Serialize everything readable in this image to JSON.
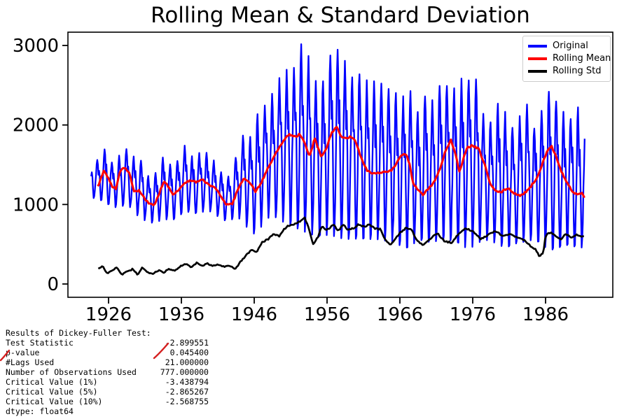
{
  "title": "Rolling Mean & Standard Deviation",
  "legend": [
    {
      "name": "original",
      "label": "Original",
      "color": "#0000ff"
    },
    {
      "name": "rolling-mean",
      "label": "Rolling Mean",
      "color": "#ff0000"
    },
    {
      "name": "rolling-std",
      "label": "Rolling Std",
      "color": "#000000"
    }
  ],
  "chart_data": {
    "type": "line",
    "title": "Rolling Mean & Standard Deviation",
    "xlabel": "",
    "ylabel": "",
    "x_unit": "year (monthly time series)",
    "x_ticks": [
      1926,
      1936,
      1946,
      1956,
      1966,
      1976,
      1986
    ],
    "y_ticks": [
      0,
      1000,
      2000,
      3000
    ],
    "x_range": [
      1923.62,
      1991.38
    ],
    "grid": false,
    "legend_position": "upper right",
    "series": [
      {
        "name": "Original",
        "color": "#0000ff",
        "kind": "seasonal_envelope_monthly",
        "envelope_start_year": 1924,
        "peaks": [
          1560,
          1700,
          1520,
          1620,
          1700,
          1600,
          1550,
          1350,
          1400,
          1600,
          1500,
          1550,
          1750,
          1600,
          1650,
          1650,
          1550,
          1400,
          1350,
          1600,
          1880,
          1850,
          2150,
          2250,
          2400,
          2600,
          2700,
          2720,
          3030,
          2860,
          2540,
          2550,
          2890,
          2950,
          2800,
          2590,
          2640,
          2560,
          2550,
          2520,
          2450,
          2400,
          2360,
          2430,
          2150,
          2370,
          2310,
          2500,
          2490,
          2460,
          2590,
          2560,
          2575,
          2120,
          2030,
          2280,
          2160,
          1955,
          2120,
          2265,
          1940,
          2190,
          2430,
          2290,
          2160,
          2070,
          2230,
          2030
        ],
        "troughs": [
          1080,
          1020,
          980,
          950,
          1020,
          900,
          820,
          780,
          760,
          830,
          790,
          840,
          920,
          890,
          890,
          930,
          890,
          810,
          790,
          840,
          800,
          620,
          650,
          800,
          870,
          800,
          760,
          720,
          670,
          640,
          600,
          610,
          620,
          580,
          570,
          560,
          580,
          560,
          570,
          550,
          540,
          520,
          450,
          470,
          560,
          540,
          520,
          560,
          540,
          560,
          480,
          440,
          500,
          560,
          540,
          500,
          450,
          500,
          520,
          540,
          560,
          500,
          420,
          450,
          480,
          500,
          440,
          480
        ],
        "seasonal_pattern": [
          0.05,
          0.2,
          0.42,
          0.65,
          0.88,
          1.0,
          0.85,
          0.62,
          0.72,
          0.5,
          0.22,
          0.0
        ]
      },
      {
        "name": "Rolling Mean",
        "color": "#ff0000",
        "kind": "control_points",
        "points": [
          [
            1924.6,
            1230
          ],
          [
            1925.3,
            1420
          ],
          [
            1925.9,
            1350
          ],
          [
            1926.5,
            1230
          ],
          [
            1927.0,
            1200
          ],
          [
            1927.6,
            1420
          ],
          [
            1928.3,
            1470
          ],
          [
            1928.9,
            1380
          ],
          [
            1929.5,
            1160
          ],
          [
            1930.2,
            1180
          ],
          [
            1930.8,
            1100
          ],
          [
            1931.5,
            1010
          ],
          [
            1932.3,
            990
          ],
          [
            1933.0,
            1150
          ],
          [
            1933.6,
            1300
          ],
          [
            1934.2,
            1230
          ],
          [
            1934.8,
            1130
          ],
          [
            1935.6,
            1180
          ],
          [
            1936.4,
            1270
          ],
          [
            1937.2,
            1300
          ],
          [
            1938.0,
            1280
          ],
          [
            1939.0,
            1310
          ],
          [
            1939.8,
            1240
          ],
          [
            1940.6,
            1220
          ],
          [
            1941.4,
            1100
          ],
          [
            1942.2,
            1000
          ],
          [
            1943.0,
            1010
          ],
          [
            1943.8,
            1200
          ],
          [
            1944.6,
            1330
          ],
          [
            1945.4,
            1280
          ],
          [
            1946.2,
            1160
          ],
          [
            1947.0,
            1280
          ],
          [
            1947.8,
            1440
          ],
          [
            1948.6,
            1580
          ],
          [
            1949.4,
            1720
          ],
          [
            1950.2,
            1830
          ],
          [
            1950.9,
            1880
          ],
          [
            1951.6,
            1850
          ],
          [
            1952.2,
            1880
          ],
          [
            1952.8,
            1800
          ],
          [
            1953.6,
            1600
          ],
          [
            1954.3,
            1830
          ],
          [
            1955.2,
            1600
          ],
          [
            1955.9,
            1700
          ],
          [
            1956.6,
            1900
          ],
          [
            1957.3,
            1980
          ],
          [
            1957.9,
            1850
          ],
          [
            1958.5,
            1830
          ],
          [
            1959.2,
            1850
          ],
          [
            1959.9,
            1800
          ],
          [
            1960.8,
            1560
          ],
          [
            1961.5,
            1430
          ],
          [
            1962.3,
            1390
          ],
          [
            1963.2,
            1400
          ],
          [
            1964.1,
            1410
          ],
          [
            1964.9,
            1430
          ],
          [
            1965.7,
            1540
          ],
          [
            1966.4,
            1640
          ],
          [
            1967.0,
            1610
          ],
          [
            1967.4,
            1480
          ],
          [
            1967.8,
            1270
          ],
          [
            1968.5,
            1180
          ],
          [
            1969.2,
            1120
          ],
          [
            1970.0,
            1210
          ],
          [
            1970.7,
            1280
          ],
          [
            1971.5,
            1450
          ],
          [
            1972.2,
            1660
          ],
          [
            1973.0,
            1810
          ],
          [
            1973.6,
            1650
          ],
          [
            1974.2,
            1400
          ],
          [
            1974.8,
            1600
          ],
          [
            1975.3,
            1720
          ],
          [
            1975.9,
            1740
          ],
          [
            1976.8,
            1700
          ],
          [
            1977.7,
            1490
          ],
          [
            1978.4,
            1255
          ],
          [
            1979.0,
            1180
          ],
          [
            1979.8,
            1150
          ],
          [
            1980.9,
            1210
          ],
          [
            1981.6,
            1140
          ],
          [
            1982.4,
            1110
          ],
          [
            1983.2,
            1150
          ],
          [
            1984.0,
            1230
          ],
          [
            1984.8,
            1330
          ],
          [
            1985.5,
            1500
          ],
          [
            1986.2,
            1660
          ],
          [
            1986.8,
            1740
          ],
          [
            1987.4,
            1620
          ],
          [
            1988.1,
            1430
          ],
          [
            1988.9,
            1280
          ],
          [
            1989.7,
            1160
          ],
          [
            1990.4,
            1120
          ],
          [
            1990.9,
            1150
          ],
          [
            1991.4,
            1080
          ]
        ]
      },
      {
        "name": "Rolling Std",
        "color": "#000000",
        "kind": "control_points",
        "points": [
          [
            1924.7,
            190
          ],
          [
            1925.2,
            235
          ],
          [
            1925.7,
            130
          ],
          [
            1926.4,
            165
          ],
          [
            1927.1,
            205
          ],
          [
            1927.8,
            120
          ],
          [
            1928.6,
            155
          ],
          [
            1929.3,
            185
          ],
          [
            1930.0,
            120
          ],
          [
            1930.6,
            205
          ],
          [
            1931.3,
            150
          ],
          [
            1932.1,
            135
          ],
          [
            1932.9,
            175
          ],
          [
            1933.6,
            145
          ],
          [
            1934.3,
            195
          ],
          [
            1935.1,
            160
          ],
          [
            1935.9,
            225
          ],
          [
            1936.6,
            255
          ],
          [
            1937.3,
            215
          ],
          [
            1938.1,
            265
          ],
          [
            1938.9,
            235
          ],
          [
            1939.6,
            255
          ],
          [
            1940.4,
            230
          ],
          [
            1941.1,
            245
          ],
          [
            1941.9,
            215
          ],
          [
            1942.6,
            235
          ],
          [
            1943.4,
            185
          ],
          [
            1944.1,
            280
          ],
          [
            1944.9,
            360
          ],
          [
            1945.6,
            430
          ],
          [
            1946.3,
            400
          ],
          [
            1947.1,
            530
          ],
          [
            1947.9,
            560
          ],
          [
            1948.6,
            630
          ],
          [
            1949.4,
            600
          ],
          [
            1950.1,
            690
          ],
          [
            1950.8,
            740
          ],
          [
            1951.5,
            750
          ],
          [
            1952.3,
            790
          ],
          [
            1952.9,
            840
          ],
          [
            1953.4,
            720
          ],
          [
            1954.1,
            500
          ],
          [
            1954.7,
            580
          ],
          [
            1955.3,
            730
          ],
          [
            1955.9,
            680
          ],
          [
            1956.4,
            700
          ],
          [
            1956.9,
            755
          ],
          [
            1957.5,
            660
          ],
          [
            1958.2,
            745
          ],
          [
            1958.9,
            680
          ],
          [
            1959.6,
            700
          ],
          [
            1960.3,
            750
          ],
          [
            1961.1,
            720
          ],
          [
            1961.8,
            750
          ],
          [
            1962.5,
            700
          ],
          [
            1963.3,
            690
          ],
          [
            1964.0,
            560
          ],
          [
            1964.7,
            490
          ],
          [
            1965.4,
            570
          ],
          [
            1966.1,
            650
          ],
          [
            1966.9,
            710
          ],
          [
            1967.6,
            680
          ],
          [
            1968.4,
            540
          ],
          [
            1969.1,
            490
          ],
          [
            1970.1,
            560
          ],
          [
            1971.1,
            640
          ],
          [
            1972.1,
            540
          ],
          [
            1973.1,
            520
          ],
          [
            1974.1,
            640
          ],
          [
            1975.1,
            700
          ],
          [
            1976.1,
            660
          ],
          [
            1977.1,
            560
          ],
          [
            1978.1,
            620
          ],
          [
            1979.1,
            670
          ],
          [
            1980.1,
            600
          ],
          [
            1981.1,
            630
          ],
          [
            1982.1,
            590
          ],
          [
            1983.1,
            550
          ],
          [
            1983.9,
            480
          ],
          [
            1984.6,
            440
          ],
          [
            1985.2,
            340
          ],
          [
            1985.7,
            400
          ],
          [
            1986.0,
            610
          ],
          [
            1986.7,
            650
          ],
          [
            1987.4,
            600
          ],
          [
            1988.1,
            560
          ],
          [
            1988.8,
            630
          ],
          [
            1989.6,
            580
          ],
          [
            1990.3,
            625
          ],
          [
            1990.9,
            590
          ],
          [
            1991.4,
            610
          ]
        ]
      }
    ]
  },
  "stats_text": {
    "heading": "Results of Dickey-Fuller Test:",
    "rows": [
      {
        "label": "Test Statistic",
        "value": "-2.899551"
      },
      {
        "label": "p-value",
        "value": "0.045400"
      },
      {
        "label": "#Lags Used",
        "value": "21.000000"
      },
      {
        "label": "Number of Observations Used",
        "value": "777.000000"
      },
      {
        "label": "Critical Value (1%)",
        "value": "-3.438794"
      },
      {
        "label": "Critical Value (5%)",
        "value": "-2.865267"
      },
      {
        "label": "Critical Value (10%)",
        "value": "-2.568755"
      }
    ],
    "footer": "dtype: float64",
    "annotations": [
      {
        "name": "red-slash-over-p-value-label",
        "color": "#d51f1f"
      },
      {
        "name": "red-slash-over-p-value-number",
        "color": "#d51f1f"
      }
    ]
  }
}
